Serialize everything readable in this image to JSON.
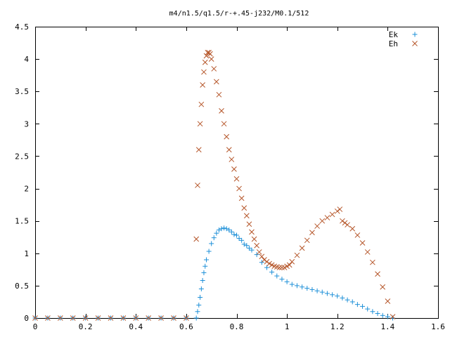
{
  "chart_data": {
    "type": "scatter",
    "title": "m4/n1.5/q1.5/r-+.45-j232/M0.1/512",
    "xlabel": "",
    "ylabel": "",
    "xlim": [
      0,
      1.6
    ],
    "ylim": [
      0,
      4.5
    ],
    "x_ticks": [
      "0",
      "0.2",
      "0.4",
      "0.6",
      "0.8",
      "1",
      "1.2",
      "1.4",
      "1.6"
    ],
    "y_ticks": [
      "0",
      "0.5",
      "1",
      "1.5",
      "2",
      "2.5",
      "3",
      "3.5",
      "4",
      "4.5"
    ],
    "x_tick_values": [
      0,
      0.2,
      0.4,
      0.6,
      0.8,
      1.0,
      1.2,
      1.4,
      1.6
    ],
    "y_tick_values": [
      0,
      0.5,
      1.0,
      1.5,
      2.0,
      2.5,
      3.0,
      3.5,
      4.0,
      4.5
    ],
    "grid": false,
    "legend_position": "top-right",
    "series": [
      {
        "name": "Ek",
        "marker": "plus",
        "color": "#1e90d8",
        "x": [
          0.0,
          0.05,
          0.1,
          0.15,
          0.2,
          0.25,
          0.3,
          0.35,
          0.4,
          0.45,
          0.5,
          0.55,
          0.6,
          0.64,
          0.645,
          0.65,
          0.655,
          0.66,
          0.665,
          0.67,
          0.675,
          0.68,
          0.69,
          0.7,
          0.71,
          0.72,
          0.73,
          0.74,
          0.75,
          0.76,
          0.77,
          0.78,
          0.79,
          0.8,
          0.81,
          0.82,
          0.83,
          0.84,
          0.85,
          0.86,
          0.88,
          0.9,
          0.92,
          0.94,
          0.96,
          0.98,
          1.0,
          1.02,
          1.04,
          1.06,
          1.08,
          1.1,
          1.12,
          1.14,
          1.16,
          1.18,
          1.2,
          1.22,
          1.24,
          1.26,
          1.28,
          1.3,
          1.32,
          1.34,
          1.36,
          1.38,
          1.4,
          1.42
        ],
        "y": [
          0,
          0,
          0,
          0,
          0,
          0,
          0,
          0,
          0,
          0,
          0,
          0,
          0,
          0.0,
          0.1,
          0.2,
          0.32,
          0.45,
          0.58,
          0.7,
          0.8,
          0.9,
          1.03,
          1.15,
          1.24,
          1.31,
          1.36,
          1.38,
          1.39,
          1.38,
          1.36,
          1.33,
          1.29,
          1.28,
          1.23,
          1.2,
          1.14,
          1.12,
          1.08,
          1.05,
          0.98,
          0.86,
          0.78,
          0.71,
          0.65,
          0.6,
          0.56,
          0.52,
          0.5,
          0.48,
          0.46,
          0.44,
          0.42,
          0.4,
          0.38,
          0.36,
          0.34,
          0.31,
          0.28,
          0.25,
          0.21,
          0.18,
          0.14,
          0.1,
          0.07,
          0.04,
          0.02,
          0.0
        ]
      },
      {
        "name": "Eh",
        "marker": "cross",
        "color": "#b5562a",
        "x": [
          0.0,
          0.05,
          0.1,
          0.15,
          0.2,
          0.25,
          0.3,
          0.35,
          0.4,
          0.45,
          0.5,
          0.55,
          0.6,
          0.64,
          0.645,
          0.65,
          0.655,
          0.66,
          0.665,
          0.67,
          0.675,
          0.68,
          0.685,
          0.69,
          0.695,
          0.7,
          0.71,
          0.72,
          0.73,
          0.74,
          0.75,
          0.76,
          0.77,
          0.78,
          0.79,
          0.8,
          0.81,
          0.82,
          0.83,
          0.84,
          0.85,
          0.86,
          0.87,
          0.88,
          0.89,
          0.9,
          0.91,
          0.92,
          0.93,
          0.94,
          0.95,
          0.96,
          0.97,
          0.98,
          0.99,
          1.0,
          1.01,
          1.02,
          1.04,
          1.06,
          1.08,
          1.1,
          1.12,
          1.14,
          1.16,
          1.18,
          1.2,
          1.21,
          1.22,
          1.23,
          1.24,
          1.26,
          1.28,
          1.3,
          1.32,
          1.34,
          1.36,
          1.38,
          1.4,
          1.42
        ],
        "y": [
          0,
          0,
          0,
          0,
          0,
          0,
          0,
          0,
          0,
          0,
          0,
          0,
          0,
          1.22,
          2.05,
          2.6,
          3.0,
          3.3,
          3.6,
          3.8,
          3.95,
          4.05,
          4.1,
          4.1,
          4.08,
          4.0,
          3.85,
          3.65,
          3.45,
          3.2,
          3.0,
          2.8,
          2.6,
          2.45,
          2.3,
          2.15,
          2.0,
          1.85,
          1.7,
          1.58,
          1.45,
          1.33,
          1.22,
          1.12,
          1.02,
          0.95,
          0.9,
          0.87,
          0.84,
          0.82,
          0.8,
          0.79,
          0.78,
          0.78,
          0.78,
          0.8,
          0.82,
          0.87,
          0.97,
          1.08,
          1.2,
          1.32,
          1.42,
          1.5,
          1.55,
          1.6,
          1.65,
          1.68,
          1.5,
          1.47,
          1.44,
          1.38,
          1.28,
          1.16,
          1.02,
          0.86,
          0.68,
          0.48,
          0.26,
          0.02
        ]
      }
    ]
  }
}
